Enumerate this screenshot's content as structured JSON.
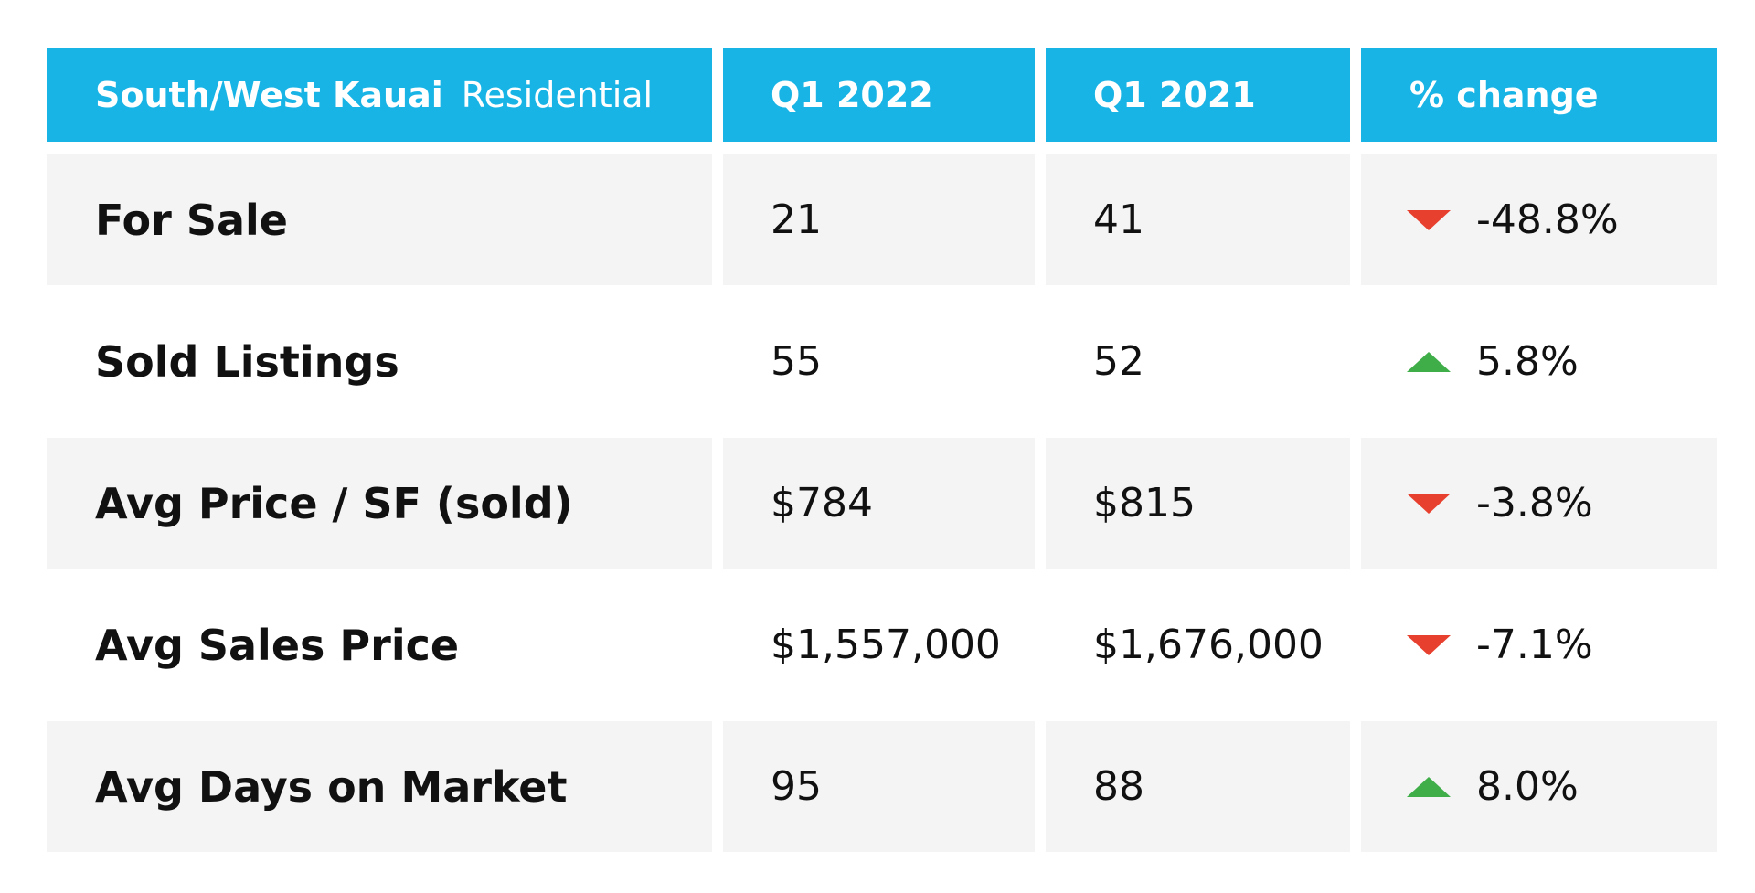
{
  "header": {
    "region": "South/West Kauai",
    "segment": "Residential",
    "col1": "Q1 2022",
    "col2": "Q1 2021",
    "col3": "% change"
  },
  "colors": {
    "header_bg": "#18b4e6",
    "row_shade": "#f4f4f4",
    "down": "#e8402e",
    "up": "#3fae49"
  },
  "rows": [
    {
      "label": "For Sale",
      "q1_2022": "21",
      "q1_2021": "41",
      "change": "-48.8%",
      "direction": "down",
      "direction_icon": "triangle-down-icon"
    },
    {
      "label": "Sold Listings",
      "q1_2022": "55",
      "q1_2021": "52",
      "change": "5.8%",
      "direction": "up",
      "direction_icon": "triangle-up-icon"
    },
    {
      "label": "Avg Price / SF (sold)",
      "q1_2022": "$784",
      "q1_2021": "$815",
      "change": "-3.8%",
      "direction": "down",
      "direction_icon": "triangle-down-icon"
    },
    {
      "label": "Avg Sales Price",
      "q1_2022": "$1,557,000",
      "q1_2021": "$1,676,000",
      "change": "-7.1%",
      "direction": "down",
      "direction_icon": "triangle-down-icon"
    },
    {
      "label": "Avg Days on Market",
      "q1_2022": "95",
      "q1_2021": "88",
      "change": "8.0%",
      "direction": "up",
      "direction_icon": "triangle-up-icon"
    }
  ]
}
